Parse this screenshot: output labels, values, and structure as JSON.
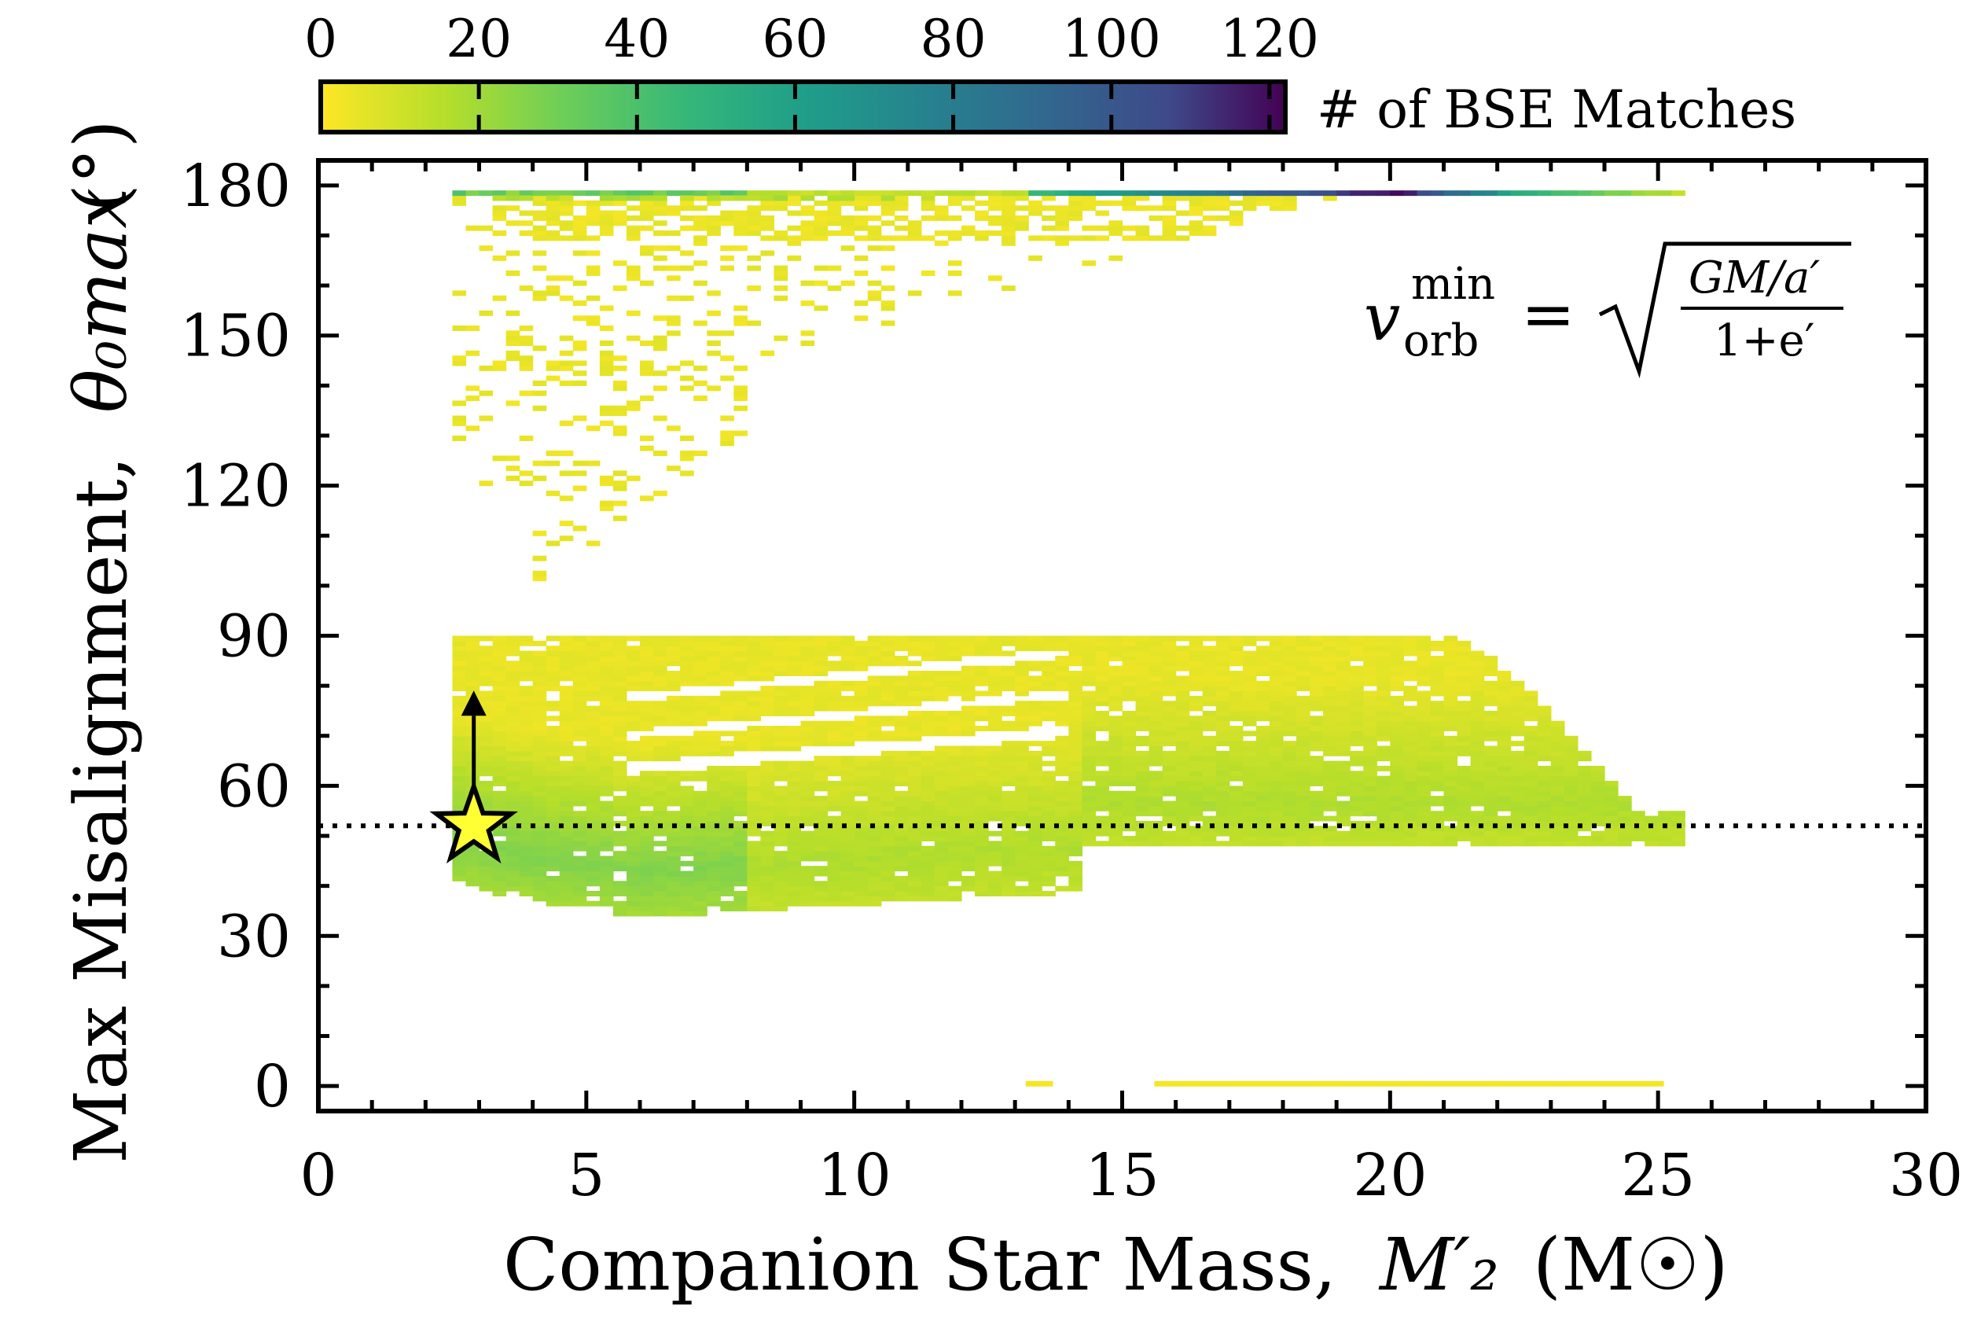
{
  "chart_data": {
    "type": "heatmap",
    "title": "",
    "xlabel": "Companion Star Mass,",
    "xlabel_symbol": "M′₂",
    "xlabel_unit": "(M☉)",
    "ylabel": "Max Misalignment,",
    "ylabel_symbol": "θ₀max",
    "ylabel_unit": "(°)",
    "xlim": [
      0,
      30
    ],
    "ylim": [
      -5,
      185
    ],
    "xticks": [
      "0",
      "5",
      "10",
      "15",
      "20",
      "25",
      "30"
    ],
    "yticks": [
      "0",
      "30",
      "60",
      "90",
      "120",
      "150",
      "180"
    ],
    "colorbar": {
      "label": "# of BSE Matches",
      "range": [
        0,
        122
      ],
      "ticks": [
        "0",
        "20",
        "40",
        "60",
        "80",
        "100",
        "120"
      ],
      "colormap": "viridis_r"
    },
    "annotation": {
      "lhs": "v",
      "lhs_sup": "min",
      "lhs_sub": "orb",
      "equals": "=",
      "numerator": "GM/a′",
      "denominator": "1+e′"
    },
    "marker": {
      "x": 2.9,
      "y": 52,
      "shape": "star",
      "color": "#ffff33",
      "arrow": "up"
    },
    "hline": {
      "y": 52,
      "style": "dotted"
    },
    "region_summary": {
      "high_band": {
        "x": [
          2.5,
          25.5
        ],
        "y": [
          90,
          180
        ],
        "peak_count": 120,
        "peak_at_deg": 179
      },
      "low_band": {
        "x": [
          2.5,
          25.5
        ],
        "y": [
          34,
          90
        ],
        "peak_count": 25
      },
      "floor_band": {
        "x": [
          13.2,
          25
        ],
        "y": [
          0,
          1
        ]
      }
    }
  }
}
